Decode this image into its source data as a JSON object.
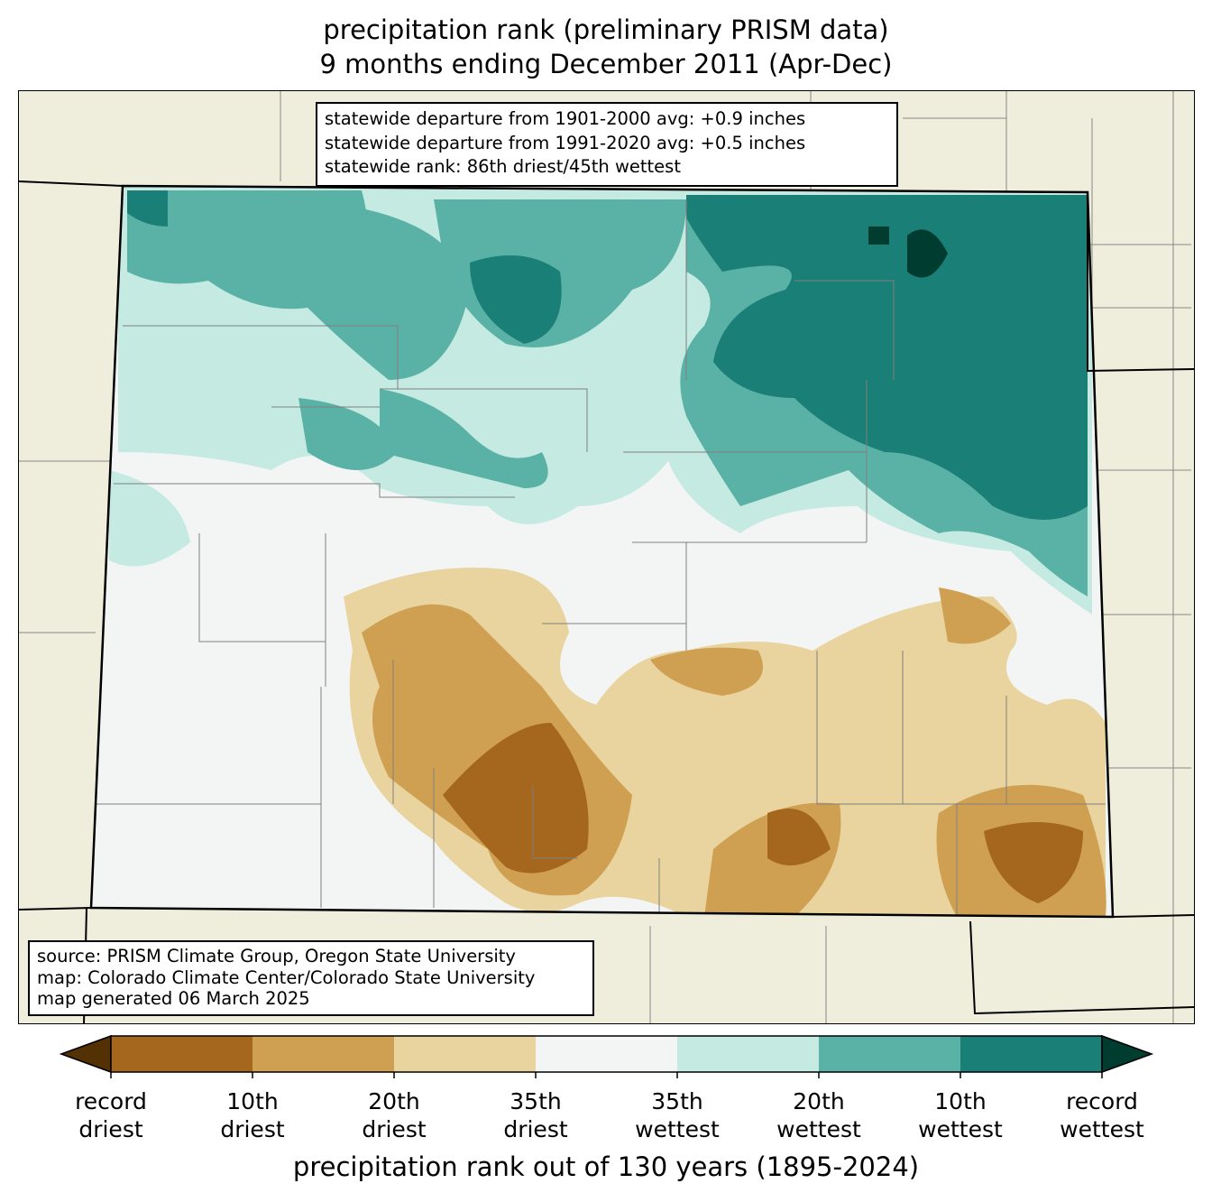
{
  "title": {
    "line1": "precipitation rank (preliminary PRISM data)",
    "line2": "9 months ending December 2011 (Apr-Dec)"
  },
  "info_box": {
    "line1": "statewide departure from 1901-2000 avg: +0.9 inches",
    "line2": "statewide departure from 1991-2020 avg: +0.5 inches",
    "line3": "statewide rank: 86th driest/45th wettest"
  },
  "source_box": {
    "line1": "source: PRISM Climate Group, Oregon State University",
    "line2": "map: Colorado Climate Center/Colorado State University",
    "line3": "map generated 06 March 2025"
  },
  "colorbar": {
    "colors": [
      "#543005",
      "#a5661e",
      "#cfa052",
      "#e9d39e",
      "#f3f5f4",
      "#c5eae2",
      "#5ab1a6",
      "#1a7f76",
      "#013c30"
    ],
    "labels": [
      [
        "record",
        "driest"
      ],
      [
        "10th",
        "driest"
      ],
      [
        "20th",
        "driest"
      ],
      [
        "35th",
        "driest"
      ],
      [
        "35th",
        "wettest"
      ],
      [
        "20th",
        "wettest"
      ],
      [
        "10th",
        "wettest"
      ],
      [
        "record",
        "wettest"
      ]
    ],
    "xlabel": "precipitation rank out of 130 years (1895-2024)"
  },
  "colors": {
    "land": "#efeedc",
    "state_line": "#000000",
    "county_line": "#808080"
  }
}
